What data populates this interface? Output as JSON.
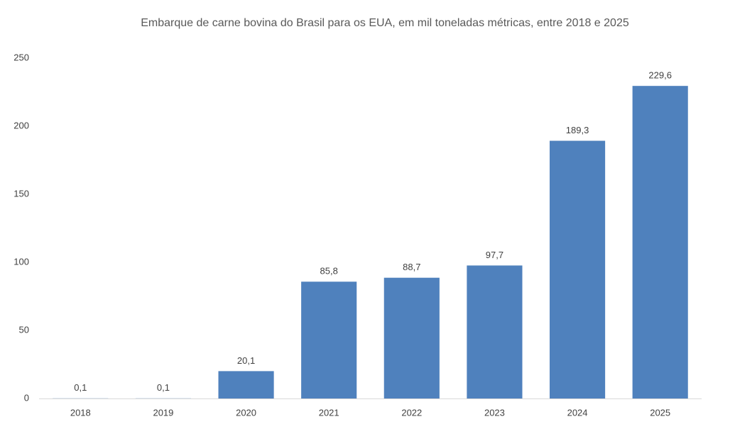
{
  "chart_data": {
    "type": "bar",
    "title": "Embarque de carne bovina do Brasil para os EUA, em mil toneladas métricas, entre 2018 e 2025",
    "categories": [
      "2018",
      "2019",
      "2020",
      "2021",
      "2022",
      "2023",
      "2024",
      "2025"
    ],
    "values": [
      0.1,
      0.1,
      20.1,
      85.8,
      88.7,
      97.7,
      189.3,
      229.6
    ],
    "value_labels": [
      "0,1",
      "0,1",
      "20,1",
      "85,8",
      "88,7",
      "97,7",
      "189,3",
      "229,6"
    ],
    "color": "#4f81bd",
    "ylim": [
      0,
      250
    ],
    "yticks": [
      0,
      50,
      100,
      150,
      200,
      250
    ],
    "grid": false
  }
}
